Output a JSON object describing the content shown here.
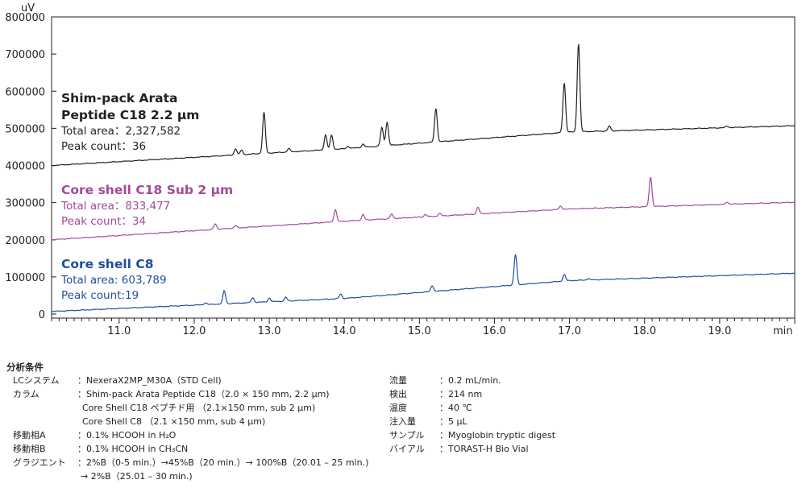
{
  "chart_data": {
    "type": "line",
    "y_unit": "uV",
    "x_unit": "min",
    "xlim": [
      10.1,
      20.0
    ],
    "ylim": [
      0,
      800000
    ],
    "x_ticks": [
      "11.0",
      "12.0",
      "13.0",
      "14.0",
      "15.0",
      "16.0",
      "17.0",
      "18.0",
      "19.0"
    ],
    "y_ticks": [
      "800000",
      "700000",
      "600000",
      "500000",
      "400000",
      "300000",
      "200000",
      "100000",
      "0"
    ],
    "series": [
      {
        "name": "Shim-pack Arata Peptide C18 2.2 µm",
        "name_lines": [
          "Shim-pack Arata",
          "Peptide C18 2.2 µm"
        ],
        "area_text": "Total area：2,327,582",
        "count_text": "Peak count：36",
        "color": "#231f20",
        "baseline": [
          [
            10.1,
            400000
          ],
          [
            14.0,
            445000
          ],
          [
            17.0,
            490000
          ],
          [
            20.0,
            507000
          ]
        ],
        "peaks": [
          [
            12.55,
            17000
          ],
          [
            12.63,
            12000
          ],
          [
            12.93,
            110000
          ],
          [
            13.26,
            9000
          ],
          [
            13.75,
            40000
          ],
          [
            13.83,
            38000
          ],
          [
            14.05,
            6000
          ],
          [
            14.25,
            9000
          ],
          [
            14.5,
            50000
          ],
          [
            14.57,
            63000
          ],
          [
            15.22,
            90000
          ],
          [
            16.93,
            133000
          ],
          [
            17.12,
            238000
          ],
          [
            17.53,
            13000
          ],
          [
            19.1,
            4000
          ]
        ]
      },
      {
        "name": "Core shell C18 Sub 2 µm",
        "name_lines": [
          "Core shell C18 Sub 2 µm"
        ],
        "area_text": "Total area：833,477",
        "count_text": "Peak count：34",
        "color": "#a4499b",
        "baseline": [
          [
            10.1,
            200000
          ],
          [
            14.0,
            250000
          ],
          [
            17.0,
            283000
          ],
          [
            20.0,
            301000
          ]
        ],
        "peaks": [
          [
            12.28,
            15000
          ],
          [
            12.55,
            7000
          ],
          [
            13.88,
            33000
          ],
          [
            14.25,
            15000
          ],
          [
            14.63,
            12000
          ],
          [
            15.08,
            6000
          ],
          [
            15.27,
            7000
          ],
          [
            15.78,
            18000
          ],
          [
            16.88,
            9000
          ],
          [
            18.08,
            80000
          ],
          [
            19.1,
            6000
          ]
        ]
      },
      {
        "name": "Core shell C8",
        "name_lines": [
          "Core shell C8"
        ],
        "area_text": "Total area: 603,789",
        "count_text": "Peak count:19",
        "color": "#1f4da0",
        "baseline": [
          [
            10.1,
            7000
          ],
          [
            14.0,
            42000
          ],
          [
            17.0,
            90000
          ],
          [
            20.0,
            110000
          ]
        ],
        "peaks": [
          [
            12.15,
            5000
          ],
          [
            12.4,
            35000
          ],
          [
            12.78,
            13000
          ],
          [
            13.0,
            10000
          ],
          [
            13.22,
            10000
          ],
          [
            13.95,
            12000
          ],
          [
            15.17,
            16000
          ],
          [
            16.28,
            82000
          ],
          [
            16.93,
            17000
          ],
          [
            17.25,
            4000
          ]
        ]
      }
    ]
  },
  "conditions": {
    "heading": "分析条件",
    "left": [
      {
        "key": "LCシステム",
        "value": "：NexeraX2MP_M30A（STD Cell)"
      },
      {
        "key": "カラム",
        "value": "：Shim-pack Arata Peptide C18（2.0 × 150 mm, 2.2 µm)"
      },
      {
        "key": "",
        "value": "Core Shell C18 ペプチド用 （2.1×150 mm, sub 2 µm)"
      },
      {
        "key": "",
        "value": "Core Shell C8 （2.1 ×150 mm, sub 4 µm)"
      },
      {
        "key": "移動相A",
        "value": "：0.1% HCOOH in H₂O"
      },
      {
        "key": "移動相B",
        "value": "：0.1% HCOOH in CH₃CN"
      },
      {
        "key": "グラジエント",
        "value": "：2%B（0-5 min.）→45%B（20 min.）→ 100%B（20.01 – 25 min.)"
      },
      {
        "key": "",
        "value": "→ 2%B（25.01 – 30 min.)"
      }
    ],
    "right": [
      {
        "key": "流量",
        "value": "：0.2 mL/min."
      },
      {
        "key": "検出",
        "value": "：214 nm"
      },
      {
        "key": "温度",
        "value": "：40 ℃"
      },
      {
        "key": "注入量",
        "value": "：5 µL"
      },
      {
        "key": "サンプル",
        "value": "：Myoglobin tryptic digest"
      },
      {
        "key": "バイアル",
        "value": "：TORAST-H Bio Vial"
      }
    ]
  }
}
